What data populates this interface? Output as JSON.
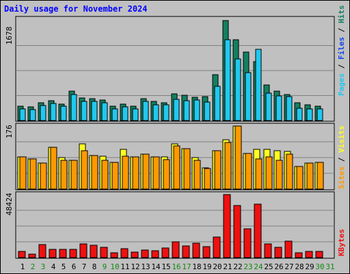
{
  "title": "Daily usage for November 2024",
  "colors": {
    "hits": "#128060",
    "files": "#22c8ee",
    "pages": "#22c8ee",
    "visits": "#ffff22",
    "sites": "#ff9900",
    "kbytes": "#ee1111",
    "weekend_day": "#118811",
    "weekday_day": "#000000",
    "panel_bg": "#c0c0c0",
    "grid": "#808080"
  },
  "side_labels": {
    "panel1": [
      "Pages",
      "Files",
      "Hits"
    ],
    "panel2": [
      "Sites",
      "Visits"
    ],
    "panel3": [
      "KBytes"
    ],
    "separator": " / "
  },
  "chart_data": [
    {
      "type": "bar",
      "panel": "hits-files-pages",
      "categories": [
        "1",
        "2",
        "3",
        "4",
        "5",
        "6",
        "7",
        "8",
        "9",
        "10",
        "11",
        "12",
        "13",
        "14",
        "15",
        "16",
        "17",
        "18",
        "19",
        "20",
        "21",
        "22",
        "23",
        "24",
        "25",
        "26",
        "27",
        "28",
        "29",
        "30",
        "31"
      ],
      "weekend_days": [
        "2",
        "3",
        "9",
        "10",
        "16",
        "17",
        "23",
        "24",
        "30",
        "31"
      ],
      "ymax_label": "1678",
      "ylim": [
        0,
        1678
      ],
      "series": [
        {
          "name": "Hits",
          "values": [
            245,
            225,
            300,
            335,
            275,
            490,
            375,
            370,
            345,
            245,
            275,
            245,
            370,
            325,
            300,
            445,
            420,
            390,
            400,
            775,
            1678,
            1360,
            1145,
            990,
            595,
            490,
            440,
            300,
            265,
            245,
            0
          ]
        },
        {
          "name": "Files",
          "values": [
            190,
            180,
            250,
            285,
            240,
            440,
            320,
            325,
            300,
            200,
            225,
            200,
            320,
            270,
            260,
            355,
            335,
            340,
            305,
            575,
            1360,
            1040,
            810,
            1200,
            465,
            410,
            405,
            210,
            200,
            190,
            0
          ]
        },
        {
          "name": "Pages",
          "values": [
            190,
            180,
            250,
            285,
            240,
            440,
            320,
            325,
            300,
            200,
            225,
            200,
            320,
            270,
            260,
            355,
            335,
            340,
            305,
            575,
            1360,
            1040,
            810,
            1200,
            465,
            410,
            405,
            210,
            200,
            190,
            0
          ]
        }
      ]
    },
    {
      "type": "bar",
      "panel": "visits-sites",
      "categories": [
        "1",
        "2",
        "3",
        "4",
        "5",
        "6",
        "7",
        "8",
        "9",
        "10",
        "11",
        "12",
        "13",
        "14",
        "15",
        "16",
        "17",
        "18",
        "19",
        "20",
        "21",
        "22",
        "23",
        "24",
        "25",
        "26",
        "27",
        "28",
        "29",
        "30",
        "31"
      ],
      "ymax_label": "176",
      "ylim": [
        0,
        176
      ],
      "series": [
        {
          "name": "Visits",
          "values": [
            90,
            85,
            73,
            117,
            88,
            80,
            127,
            93,
            92,
            74,
            110,
            90,
            98,
            90,
            90,
            126,
            113,
            88,
            60,
            107,
            138,
            176,
            99,
            110,
            110,
            108,
            105,
            63,
            72,
            75,
            0
          ]
        },
        {
          "name": "Sites",
          "values": [
            90,
            85,
            73,
            117,
            80,
            80,
            108,
            93,
            80,
            74,
            92,
            90,
            98,
            90,
            83,
            120,
            113,
            80,
            58,
            107,
            130,
            176,
            99,
            85,
            90,
            80,
            98,
            63,
            72,
            75,
            0
          ]
        }
      ]
    },
    {
      "type": "bar",
      "panel": "kbytes",
      "categories": [
        "1",
        "2",
        "3",
        "4",
        "5",
        "6",
        "7",
        "8",
        "9",
        "10",
        "11",
        "12",
        "13",
        "14",
        "15",
        "16",
        "17",
        "18",
        "19",
        "20",
        "21",
        "22",
        "23",
        "24",
        "25",
        "26",
        "27",
        "28",
        "29",
        "30",
        "31"
      ],
      "ymax_label": "48424",
      "ylim": [
        0,
        48424
      ],
      "series": [
        {
          "name": "KBytes",
          "values": [
            4700,
            2600,
            9800,
            6300,
            6300,
            6100,
            10500,
            9500,
            7800,
            3500,
            6800,
            4400,
            5800,
            5300,
            7500,
            12300,
            9100,
            10800,
            8200,
            16000,
            48424,
            40000,
            22000,
            41000,
            10400,
            7800,
            12800,
            3600,
            4600,
            4800,
            0
          ]
        }
      ]
    }
  ]
}
